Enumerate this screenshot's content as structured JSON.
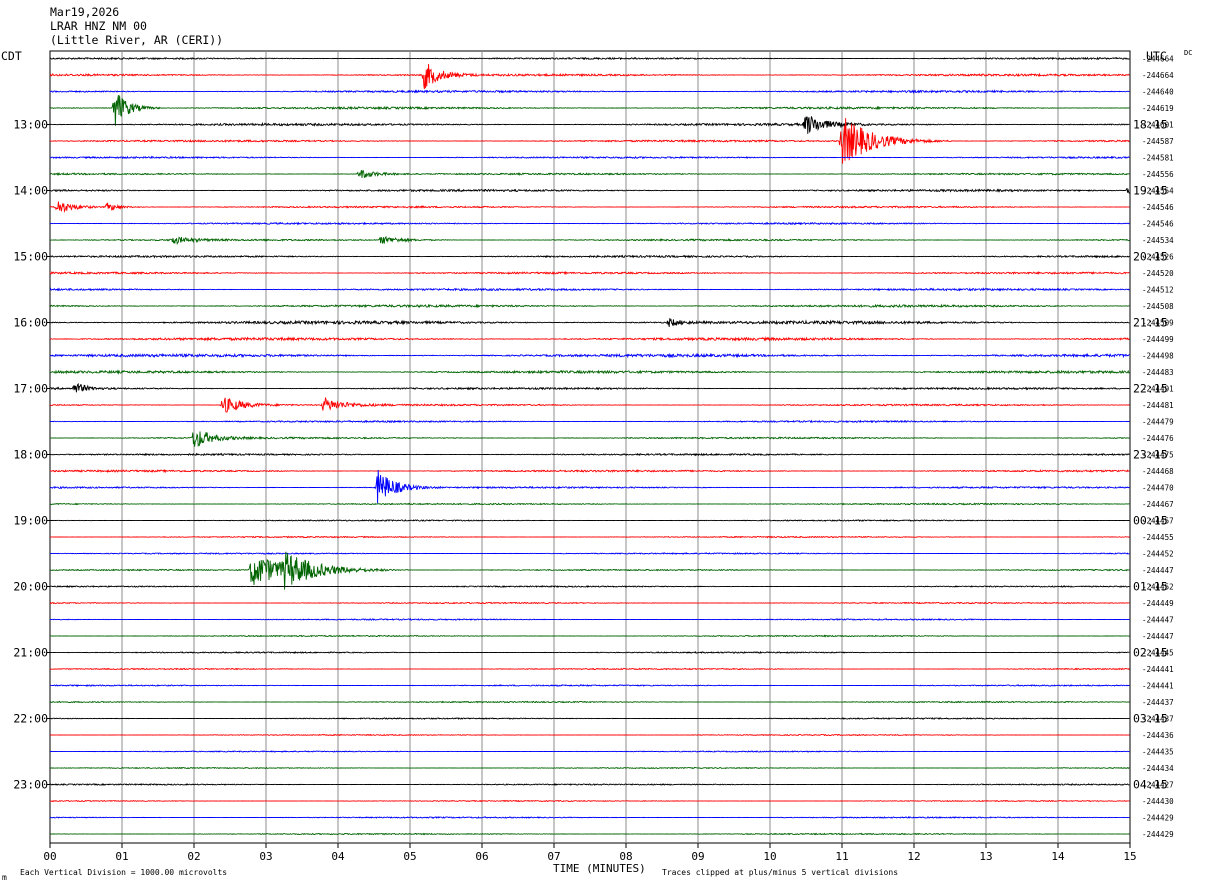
{
  "header": {
    "date": "Mar19,2026",
    "station": "LRAR HNZ NM 00",
    "location": "(Little River, AR (CERI))"
  },
  "labels": {
    "left_timezone": "CDT",
    "right_timezone": "UTC",
    "dc": "DC",
    "x_title": "TIME (MINUTES)",
    "footer_left": "Each Vertical Division = 1000.00 microvolts",
    "footer_right": "Traces clipped at plus/minus 5 vertical divisions",
    "corner_mark": "m"
  },
  "colors": {
    "trace_cycle": [
      "#000000",
      "#ff0000",
      "#0000ff",
      "#006400"
    ],
    "grid": "#8c8c8c"
  },
  "chart_data": {
    "type": "line",
    "plot_type": "helicorder",
    "xlabel": "TIME (MINUTES)",
    "x_ticks": [
      "00",
      "01",
      "02",
      "03",
      "04",
      "05",
      "06",
      "07",
      "08",
      "09",
      "10",
      "11",
      "12",
      "13",
      "14",
      "15"
    ],
    "xlim": [
      0,
      15
    ],
    "row_minutes": 15,
    "left_hour_labels": [
      "13:00",
      "14:00",
      "15:00",
      "16:00",
      "17:00",
      "18:00",
      "19:00",
      "20:00",
      "21:00",
      "22:00",
      "23:00"
    ],
    "right_hour_labels": [
      "18:15",
      "19:15",
      "20:15",
      "21:15",
      "22:15",
      "23:15",
      "00:15",
      "01:15",
      "02:15",
      "03:15",
      "04:15"
    ],
    "first_hour_row": 4,
    "dc_offsets": [
      "-244664",
      "-244664",
      "-244640",
      "-244619",
      "-244601",
      "-244587",
      "-244581",
      "-244556",
      "-244554",
      "-244546",
      "-244546",
      "-244534",
      "-244526",
      "-244520",
      "-244512",
      "-244508",
      "-244509",
      "-244499",
      "-244498",
      "-244483",
      "-244491",
      "-244481",
      "-244479",
      "-244476",
      "-244475",
      "-244468",
      "-244470",
      "-244467",
      "-244457",
      "-244455",
      "-244452",
      "-244447",
      "-244452",
      "-244449",
      "-244447",
      "-244447",
      "-244445",
      "-244441",
      "-244441",
      "-244437",
      "-244437",
      "-244436",
      "-244435",
      "-244434",
      "-244427",
      "-244430",
      "-244429",
      "-244429"
    ],
    "noise_level": [
      0.8,
      1.0,
      1.0,
      1.0,
      1.1,
      0.9,
      0.8,
      0.8,
      1.0,
      0.8,
      0.8,
      0.8,
      0.9,
      0.9,
      1.0,
      1.1,
      1.5,
      1.3,
      1.4,
      1.2,
      0.9,
      0.8,
      0.8,
      0.8,
      0.8,
      0.9,
      0.8,
      0.7,
      0.6,
      0.6,
      0.6,
      0.6,
      0.6,
      0.6,
      0.6,
      0.6,
      0.6,
      0.6,
      0.6,
      0.6,
      0.6,
      0.5,
      0.5,
      0.5,
      0.6,
      0.5,
      0.6,
      0.6
    ],
    "events": [
      {
        "row": 1,
        "minute": 5.2,
        "amplitude": 14,
        "duration": 0.35
      },
      {
        "row": 3,
        "minute": 0.9,
        "amplitude": 20,
        "duration": 0.3
      },
      {
        "row": 4,
        "minute": 10.5,
        "amplitude": 11,
        "duration": 0.4
      },
      {
        "row": 5,
        "minute": 11.0,
        "amplitude": 26,
        "duration": 0.7
      },
      {
        "row": 7,
        "minute": 4.3,
        "amplitude": 5,
        "duration": 0.4
      },
      {
        "row": 8,
        "minute": 14.98,
        "amplitude": 6,
        "duration": 0.1
      },
      {
        "row": 9,
        "minute": 0.1,
        "amplitude": 7,
        "duration": 0.4
      },
      {
        "row": 9,
        "minute": 0.8,
        "amplitude": 4,
        "duration": 0.3
      },
      {
        "row": 11,
        "minute": 1.7,
        "amplitude": 4,
        "duration": 0.4
      },
      {
        "row": 11,
        "minute": 4.6,
        "amplitude": 4,
        "duration": 0.5
      },
      {
        "row": 16,
        "minute": 8.6,
        "amplitude": 4,
        "duration": 0.3
      },
      {
        "row": 20,
        "minute": 0.35,
        "amplitude": 6,
        "duration": 0.25
      },
      {
        "row": 21,
        "minute": 2.4,
        "amplitude": 9,
        "duration": 0.5
      },
      {
        "row": 21,
        "minute": 3.8,
        "amplitude": 7,
        "duration": 0.5
      },
      {
        "row": 23,
        "minute": 2.0,
        "amplitude": 11,
        "duration": 0.4
      },
      {
        "row": 26,
        "minute": 4.55,
        "amplitude": 18,
        "duration": 0.4
      },
      {
        "row": 31,
        "minute": 2.8,
        "amplitude": 16,
        "duration": 1.0
      },
      {
        "row": 31,
        "minute": 3.25,
        "amplitude": 13,
        "duration": 0.7
      }
    ]
  }
}
